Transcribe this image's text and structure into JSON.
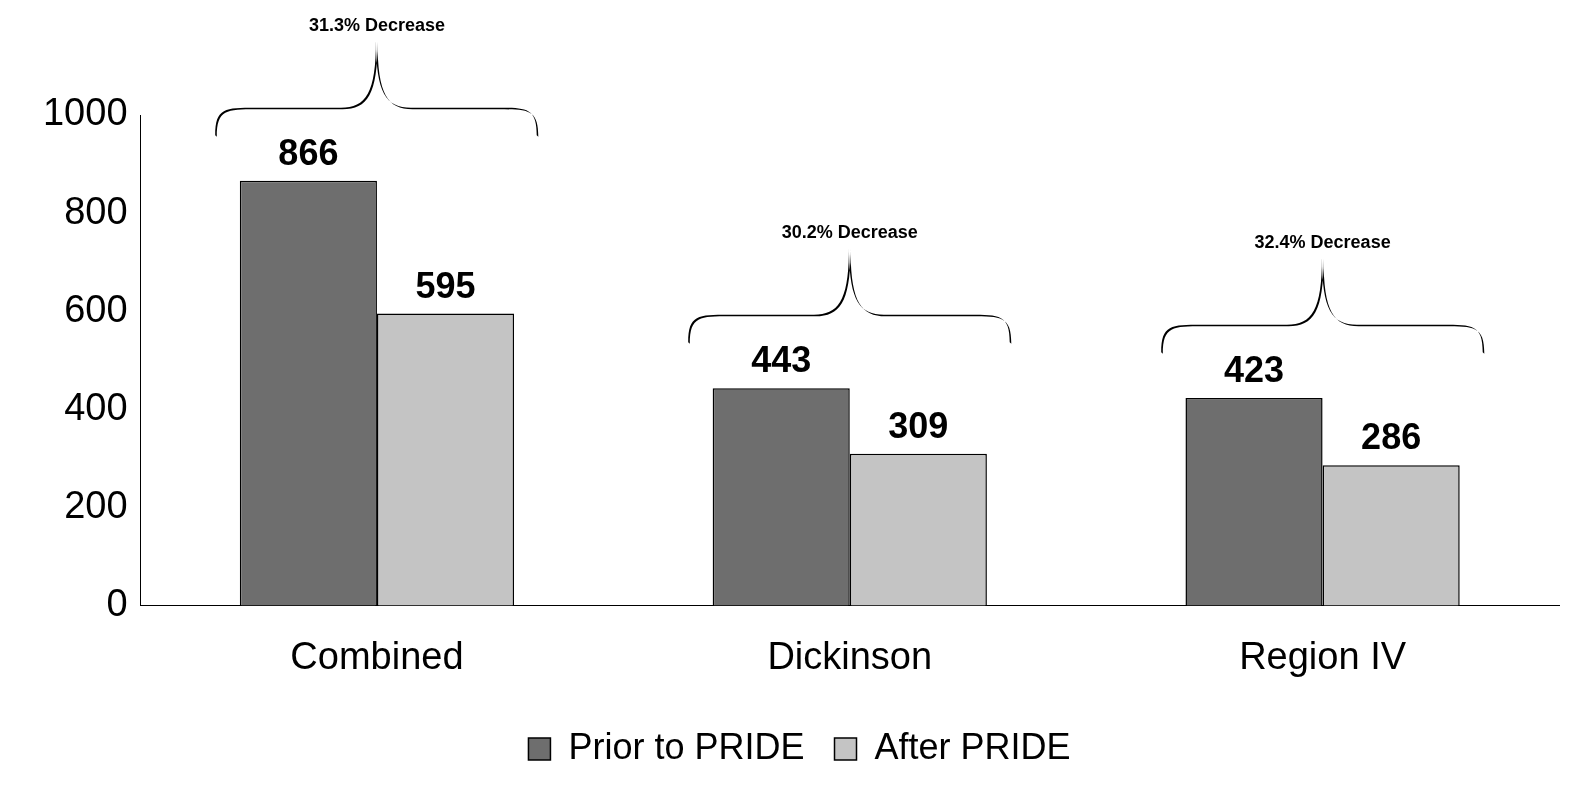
{
  "chart_data": {
    "type": "bar",
    "categories": [
      "Combined",
      "Dickinson",
      "Region IV"
    ],
    "series": [
      {
        "name": "Prior to PRIDE",
        "color": "#6e6e6e",
        "values": [
          866,
          443,
          423
        ]
      },
      {
        "name": "After PRIDE",
        "color": "#c4c4c4",
        "values": [
          595,
          309,
          286
        ]
      }
    ],
    "ylim": [
      0,
      1000
    ],
    "yticks": [
      0,
      200,
      400,
      600,
      800,
      1000
    ],
    "grid": false,
    "legend": "bottom",
    "data_labels": true,
    "annotations": [
      "31.3% Decrease",
      "30.2% Decrease",
      "32.4% Decrease"
    ]
  }
}
